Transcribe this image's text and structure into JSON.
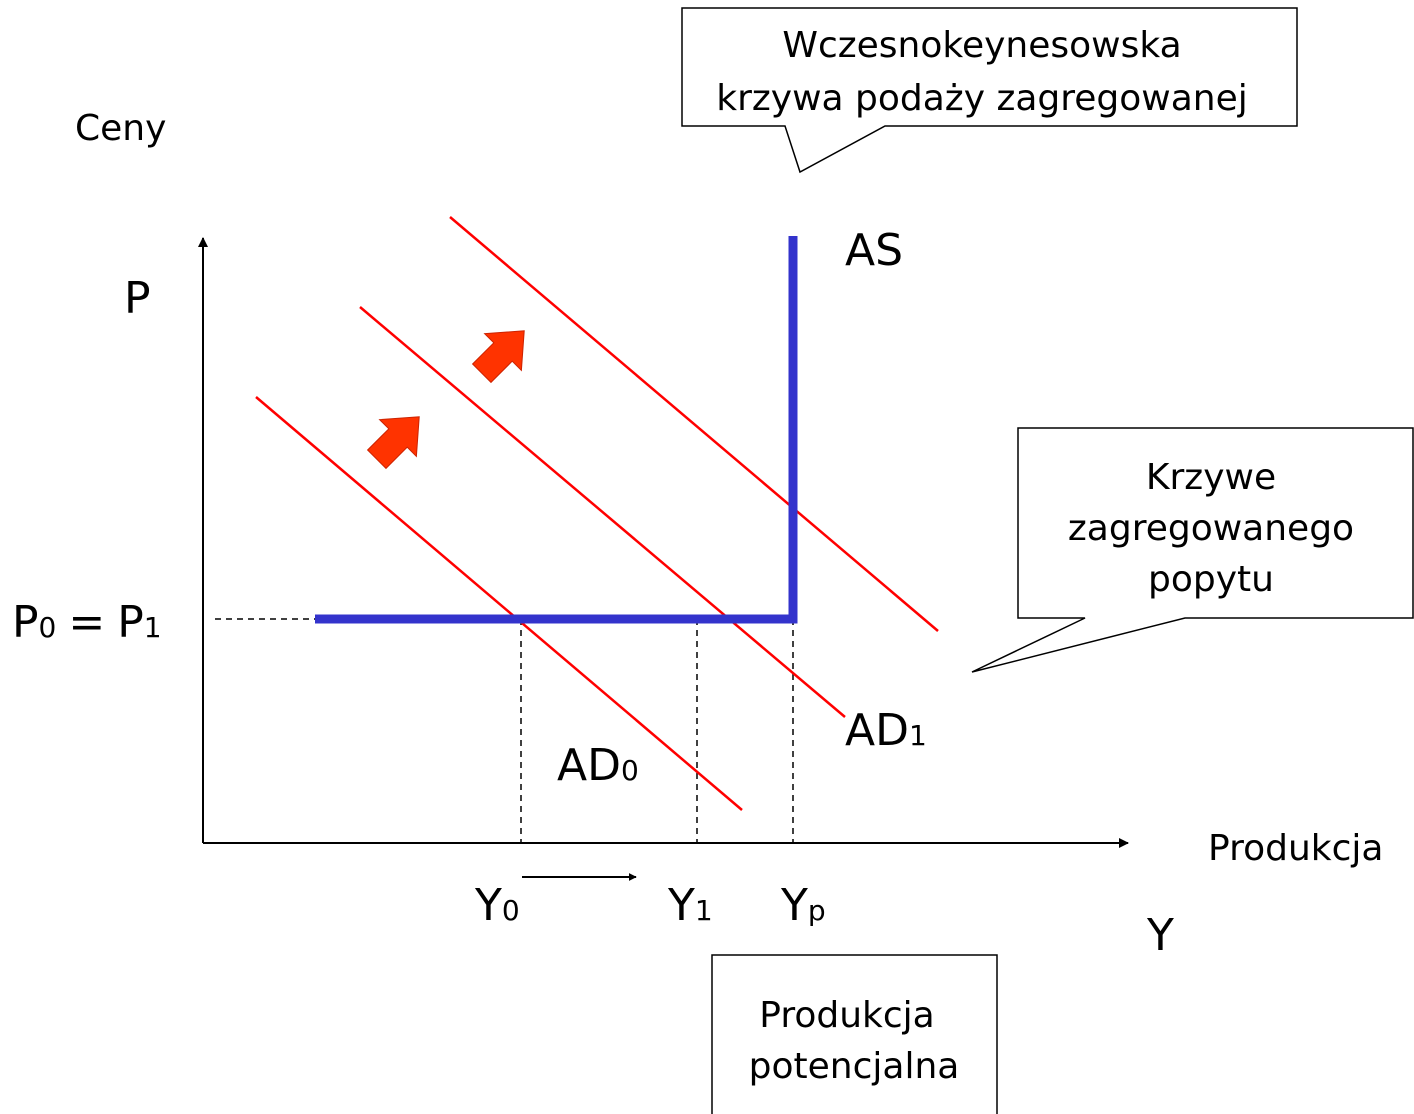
{
  "axes": {
    "y_title": "Ceny",
    "y_symbol": "P",
    "x_title": "Produkcja",
    "x_symbol": "Y"
  },
  "price_label": {
    "left": {
      "text": "P",
      "sub": "0"
    },
    "equals": "=",
    "right": {
      "text": "P",
      "sub": "1"
    }
  },
  "curves": [
    {
      "text": "AS"
    },
    {
      "text": "AD",
      "sub": "1"
    },
    {
      "text": "AD",
      "sub": "0"
    }
  ],
  "output_labels": [
    {
      "text": "Y",
      "sub": "0"
    },
    {
      "text": "Y",
      "sub": "1"
    },
    {
      "text": "Y",
      "sub": "p"
    }
  ],
  "callouts": [
    {
      "lines": [
        "Wczesnokeynesowska",
        "krzywa podaży zagregowanej"
      ]
    },
    {
      "lines": [
        "Krzywe",
        "zagregowanego",
        "popytu"
      ]
    },
    {
      "lines": [
        "Produkcja",
        "potencjalna"
      ]
    }
  ]
}
